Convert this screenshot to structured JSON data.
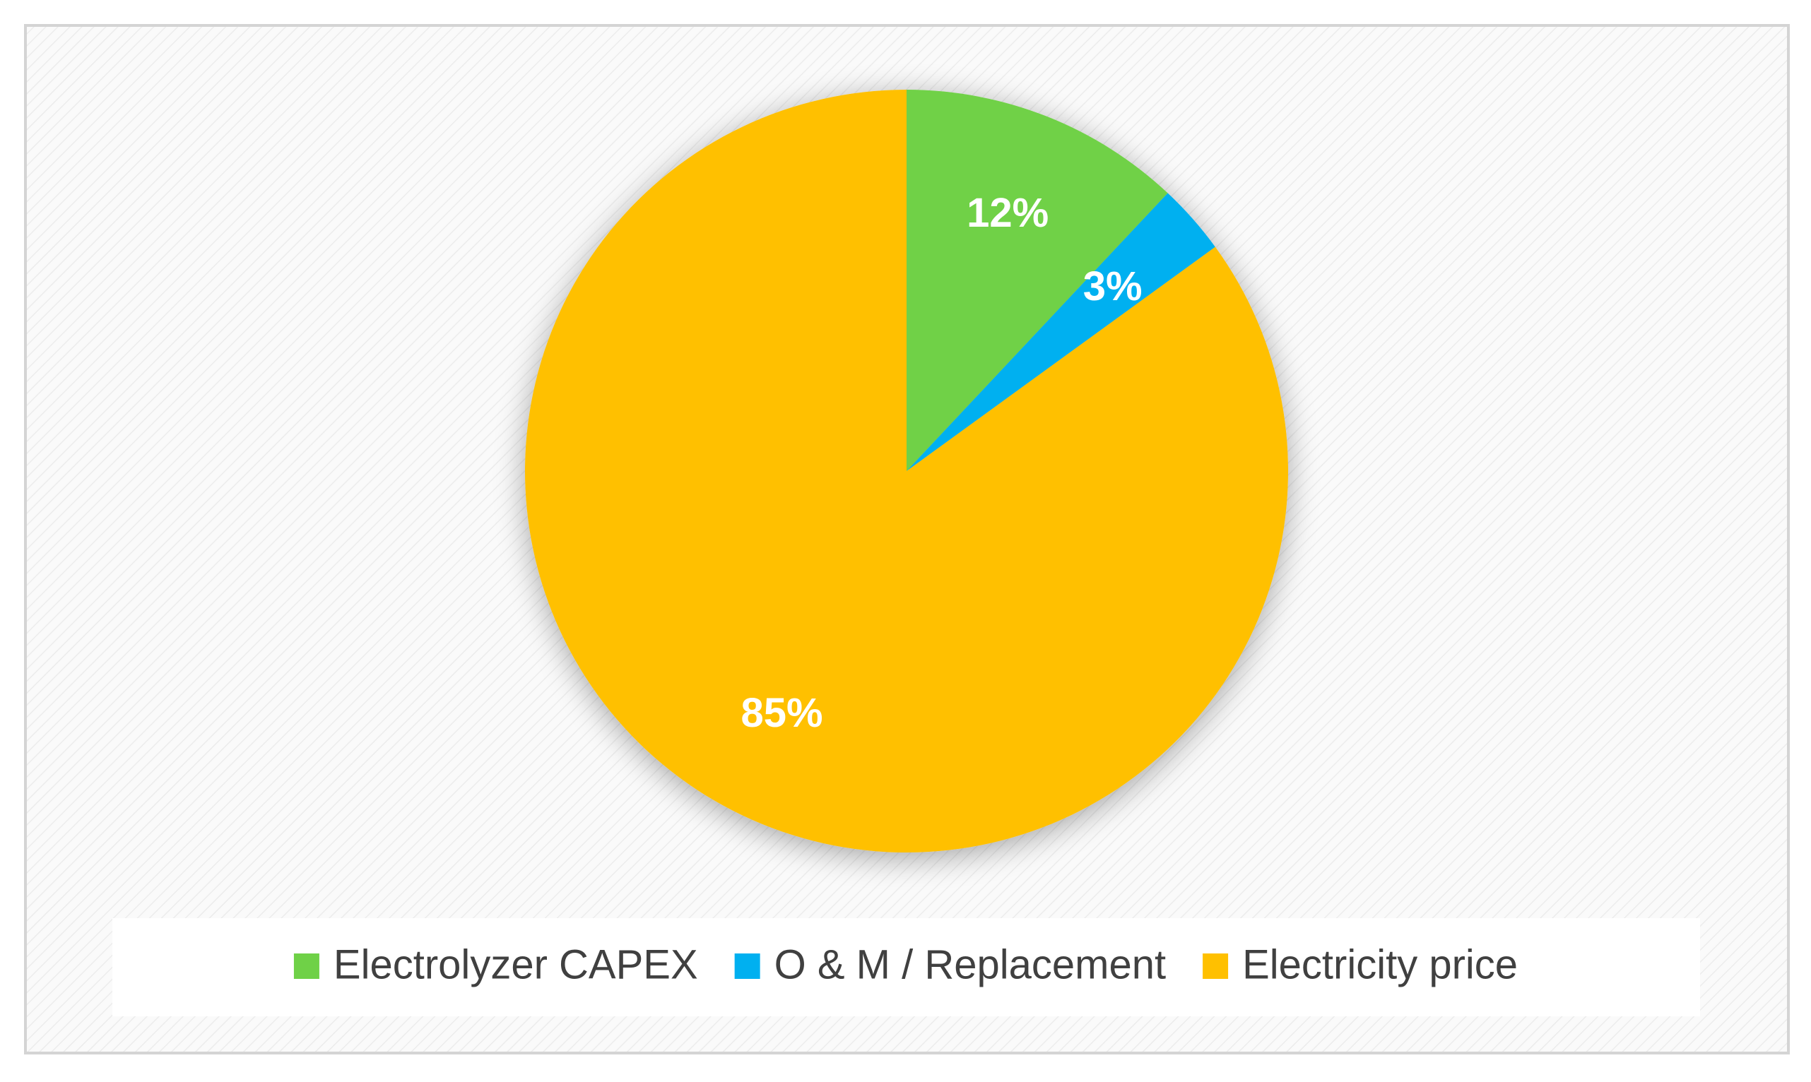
{
  "chart_data": {
    "type": "pie",
    "categories": [
      "Electrolyzer CAPEX",
      "O & M / Replacement",
      "Electricity price"
    ],
    "values": [
      12,
      3,
      85
    ],
    "value_labels": [
      "12%",
      "3%",
      "85%"
    ],
    "colors": [
      "#6fd147",
      "#00b0f0",
      "#ffc000"
    ],
    "legend": "bottom"
  }
}
